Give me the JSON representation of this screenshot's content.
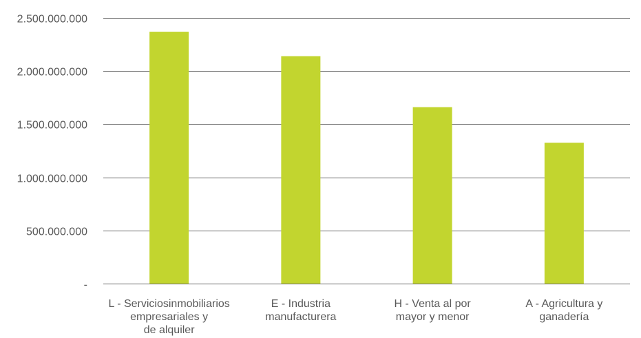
{
  "chart_data": {
    "type": "bar",
    "title": "",
    "xlabel": "",
    "ylabel": "",
    "categories": [
      "L - Serviciosinmobiliarios empresariales y de alquiler",
      "E - Industria manufacturera",
      "H - Venta al por mayor y menor",
      "A - Agricultura y ganadería"
    ],
    "category_label_lines": [
      [
        "L - Serviciosinmobiliarios",
        "empresariales y",
        "de alquiler"
      ],
      [
        "E - Industria",
        "manufacturera"
      ],
      [
        "H - Venta al por",
        "mayor y menor"
      ],
      [
        "A - Agricultura y",
        "ganadería"
      ]
    ],
    "values": [
      2370000000,
      2140000000,
      1660000000,
      1325000000
    ],
    "ylim": [
      0,
      2500000000
    ],
    "yticks": [
      0,
      500000000,
      1000000000,
      1500000000,
      2000000000,
      2500000000
    ],
    "ytick_labels": [
      "-",
      "500.000.000",
      "1.000.000.000",
      "1.500.000.000",
      "2.000.000.000",
      "2.500.000.000"
    ],
    "grid": true,
    "legend": "none",
    "colors": {
      "bar": "#c2d52f",
      "grid": "#666666",
      "text": "#595959"
    }
  }
}
